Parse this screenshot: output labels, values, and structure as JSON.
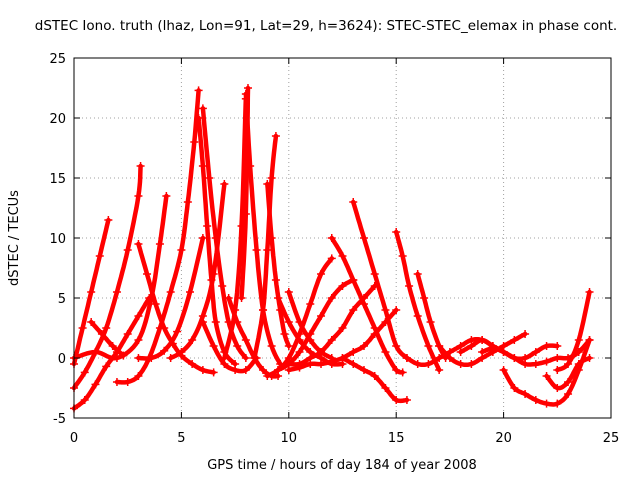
{
  "chart_data": {
    "type": "scatter",
    "title": "dSTEC Iono. truth (lhaz, Lon=91, Lat=29, h=3624): STEC-STEC_elemax in phase cont.",
    "xlabel": "GPS time / hours of day 184 of year 2008",
    "ylabel": "dSTEC  / TECUs",
    "xlim": [
      0,
      25
    ],
    "ylim": [
      -5,
      25
    ],
    "xticks": [
      0,
      5,
      10,
      15,
      20,
      25
    ],
    "yticks": [
      -5,
      0,
      5,
      10,
      15,
      20,
      25
    ],
    "xtick_labels": [
      "0",
      "5",
      "10",
      "15",
      "20",
      "25"
    ],
    "ytick_labels": [
      "-5",
      "0",
      "5",
      "10",
      "15",
      "20",
      "25"
    ],
    "grid": true,
    "marker": "+",
    "color": "#ff0000",
    "series": [
      {
        "x": [
          0,
          0.4,
          0.8,
          1.2,
          1.6
        ],
        "y": [
          -0.5,
          2.5,
          5.5,
          8.5,
          11.5
        ]
      },
      {
        "x": [
          0,
          0.5,
          1.0,
          1.5,
          2.0,
          2.5,
          3.0,
          3.1
        ],
        "y": [
          -2.5,
          -1.2,
          0.5,
          2.5,
          5.5,
          9.0,
          13.5,
          16.0
        ]
      },
      {
        "x": [
          0,
          1.0,
          2.0,
          3.0,
          3.6,
          4.0,
          4.3
        ],
        "y": [
          0.0,
          0.5,
          0.0,
          1.5,
          5.0,
          9.5,
          13.5
        ]
      },
      {
        "x": [
          0,
          0.5,
          1.0,
          1.5,
          2.0,
          2.5,
          3.0,
          3.5
        ],
        "y": [
          -4.2,
          -3.5,
          -2.2,
          -0.7,
          0.5,
          2.0,
          3.5,
          5.0
        ]
      },
      {
        "x": [
          0.8,
          1.3,
          1.8,
          2.3
        ],
        "y": [
          3.0,
          2.0,
          1.0,
          0.2
        ]
      },
      {
        "x": [
          3.0,
          3.4,
          3.8,
          4.2,
          4.6,
          5.0,
          5.5,
          6.0,
          6.5
        ],
        "y": [
          9.5,
          7.0,
          4.5,
          2.5,
          1.2,
          0.2,
          -0.5,
          -1.0,
          -1.2
        ]
      },
      {
        "x": [
          2.0,
          2.5,
          3.0,
          3.5,
          4.0,
          4.5,
          5.0,
          5.3,
          5.6,
          5.8
        ],
        "y": [
          -2.0,
          -2.0,
          -1.5,
          0.0,
          2.5,
          5.5,
          9.0,
          13.0,
          18.0,
          22.3
        ]
      },
      {
        "x": [
          5.8,
          6.0,
          6.2,
          6.4,
          6.6,
          7.0,
          7.5
        ],
        "y": [
          20.0,
          16.0,
          11.0,
          6.5,
          3.0,
          0.5,
          -0.5
        ]
      },
      {
        "x": [
          3.0,
          3.6,
          4.2,
          4.8,
          5.4,
          6.0
        ],
        "y": [
          0.0,
          0.0,
          0.6,
          2.2,
          5.5,
          10.0
        ]
      },
      {
        "x": [
          6.0,
          6.3,
          6.6,
          6.9,
          7.2,
          7.6,
          8.0
        ],
        "y": [
          20.8,
          15.0,
          10.0,
          6.0,
          3.0,
          1.0,
          0.0
        ]
      },
      {
        "x": [
          4.5,
          5.0,
          5.5,
          6.0,
          6.5,
          7.0
        ],
        "y": [
          0.0,
          0.5,
          1.5,
          3.5,
          7.0,
          14.5
        ]
      },
      {
        "x": [
          7.0,
          7.5,
          7.8,
          8.0
        ],
        "y": [
          0.0,
          4.0,
          11.0,
          21.6
        ]
      },
      {
        "x": [
          7.8,
          8.0,
          8.1
        ],
        "y": [
          5.0,
          12.0,
          22.5
        ]
      },
      {
        "x": [
          8.0,
          8.2,
          8.5,
          8.8,
          9.2,
          9.6
        ],
        "y": [
          22.0,
          16.0,
          9.0,
          4.0,
          1.0,
          -0.5
        ]
      },
      {
        "x": [
          6.0,
          6.5,
          7.0,
          7.5,
          8.0,
          8.5
        ],
        "y": [
          3.0,
          1.0,
          -0.5,
          -1.0,
          -1.0,
          0.0
        ]
      },
      {
        "x": [
          8.4,
          8.8,
          9.0,
          9.2,
          9.4
        ],
        "y": [
          0.0,
          4.0,
          9.0,
          15.0,
          18.5
        ]
      },
      {
        "x": [
          9.0,
          9.2,
          9.4,
          9.6,
          9.8,
          10.0
        ],
        "y": [
          14.5,
          10.0,
          6.5,
          4.0,
          2.0,
          1.0
        ]
      },
      {
        "x": [
          7.2,
          7.6,
          8.0,
          8.4,
          8.8,
          9.2,
          9.5
        ],
        "y": [
          5.0,
          3.0,
          1.5,
          0.0,
          -1.0,
          -1.5,
          -1.5
        ]
      },
      {
        "x": [
          9.0,
          9.5,
          10.0,
          10.5,
          11.0,
          11.5,
          12.0
        ],
        "y": [
          -1.5,
          -1.0,
          0.0,
          2.0,
          4.5,
          7.0,
          8.3
        ]
      },
      {
        "x": [
          9.5,
          10.0,
          10.5,
          11.0,
          11.5,
          12.0,
          12.5,
          13.0
        ],
        "y": [
          -1.0,
          -0.5,
          0.5,
          2.0,
          3.5,
          5.0,
          6.0,
          6.5
        ]
      },
      {
        "x": [
          10.0,
          10.5,
          11.0,
          11.5,
          12.0,
          12.5,
          13.0,
          13.5,
          14.0
        ],
        "y": [
          -0.5,
          -0.5,
          0.0,
          0.5,
          1.5,
          2.5,
          4.0,
          5.0,
          6.0
        ]
      },
      {
        "x": [
          10.0,
          10.5,
          11.0,
          11.5,
          12.0,
          12.5,
          13.0,
          13.5,
          14.0,
          14.5,
          15.0
        ],
        "y": [
          -1.0,
          -0.8,
          -0.5,
          -0.5,
          -0.3,
          0.0,
          0.5,
          1.0,
          2.0,
          3.0,
          4.0
        ]
      },
      {
        "x": [
          9.5,
          10.0,
          10.5,
          11.0,
          11.5,
          12.0,
          12.5
        ],
        "y": [
          5.0,
          3.0,
          1.5,
          0.5,
          0.0,
          -0.5,
          -0.5
        ]
      },
      {
        "x": [
          10.0,
          10.5,
          11.0,
          11.5,
          12.0
        ],
        "y": [
          5.5,
          3.0,
          1.5,
          0.5,
          0.0
        ]
      },
      {
        "x": [
          12.0,
          12.5,
          13.0,
          13.5,
          14.0,
          14.5,
          15.0,
          15.3
        ],
        "y": [
          10.0,
          8.5,
          6.5,
          4.5,
          2.5,
          0.5,
          -1.0,
          -1.2
        ]
      },
      {
        "x": [
          13.0,
          13.5,
          14.0,
          14.5,
          15.0,
          15.5
        ],
        "y": [
          13.0,
          10.0,
          7.0,
          4.0,
          1.0,
          0.0
        ]
      },
      {
        "x": [
          12.5,
          13.0,
          13.5,
          14.0,
          14.5,
          15.0,
          15.5
        ],
        "y": [
          0.0,
          -0.5,
          -1.0,
          -1.5,
          -2.5,
          -3.5,
          -3.5
        ]
      },
      {
        "x": [
          15.0,
          15.3,
          15.6,
          16.0,
          16.5,
          17.0
        ],
        "y": [
          10.5,
          8.5,
          6.0,
          3.5,
          1.0,
          -1.0
        ]
      },
      {
        "x": [
          15.5,
          16.0,
          16.5,
          17.0,
          17.5,
          18.0,
          18.5,
          19.0,
          19.5,
          20.0
        ],
        "y": [
          0.0,
          -0.5,
          -0.5,
          0.0,
          0.5,
          1.0,
          1.5,
          1.5,
          1.0,
          0.5
        ]
      },
      {
        "x": [
          16.0,
          16.3,
          16.6,
          17.0,
          17.3
        ],
        "y": [
          7.0,
          5.0,
          3.0,
          1.0,
          0.0
        ]
      },
      {
        "x": [
          17.0,
          17.5,
          18.0,
          18.5,
          19.0,
          19.5,
          20.0,
          20.5,
          21.0
        ],
        "y": [
          1.0,
          0.0,
          -0.5,
          -0.5,
          0.0,
          0.5,
          1.0,
          1.5,
          2.0
        ]
      },
      {
        "x": [
          18.0,
          18.5,
          19.0,
          19.5,
          20.0,
          20.5,
          21.0,
          21.5,
          22.0,
          22.5
        ],
        "y": [
          0.5,
          1.0,
          1.5,
          1.0,
          0.5,
          0.0,
          0.0,
          0.5,
          1.0,
          1.0
        ]
      },
      {
        "x": [
          20.0,
          20.5,
          21.0,
          21.5,
          22.0,
          22.5,
          23.0,
          23.5,
          24.0
        ],
        "y": [
          -1.0,
          -2.5,
          -3.0,
          -3.5,
          -3.8,
          -3.8,
          -3.0,
          -1.0,
          1.5
        ]
      },
      {
        "x": [
          22.0,
          22.5,
          23.0,
          23.5,
          24.0
        ],
        "y": [
          -1.5,
          -2.5,
          -2.0,
          -0.5,
          0.0
        ]
      },
      {
        "x": [
          22.5,
          23.0,
          23.5,
          24.0
        ],
        "y": [
          -1.0,
          -0.5,
          1.5,
          5.5
        ]
      },
      {
        "x": [
          19.0,
          19.5,
          20.0,
          20.5,
          21.0,
          21.5,
          22.0,
          22.5,
          23.0,
          23.5,
          24.0
        ],
        "y": [
          0.5,
          0.8,
          0.5,
          0.0,
          -0.5,
          -0.5,
          -0.3,
          0.0,
          0.0,
          0.5,
          1.5
        ]
      }
    ]
  }
}
